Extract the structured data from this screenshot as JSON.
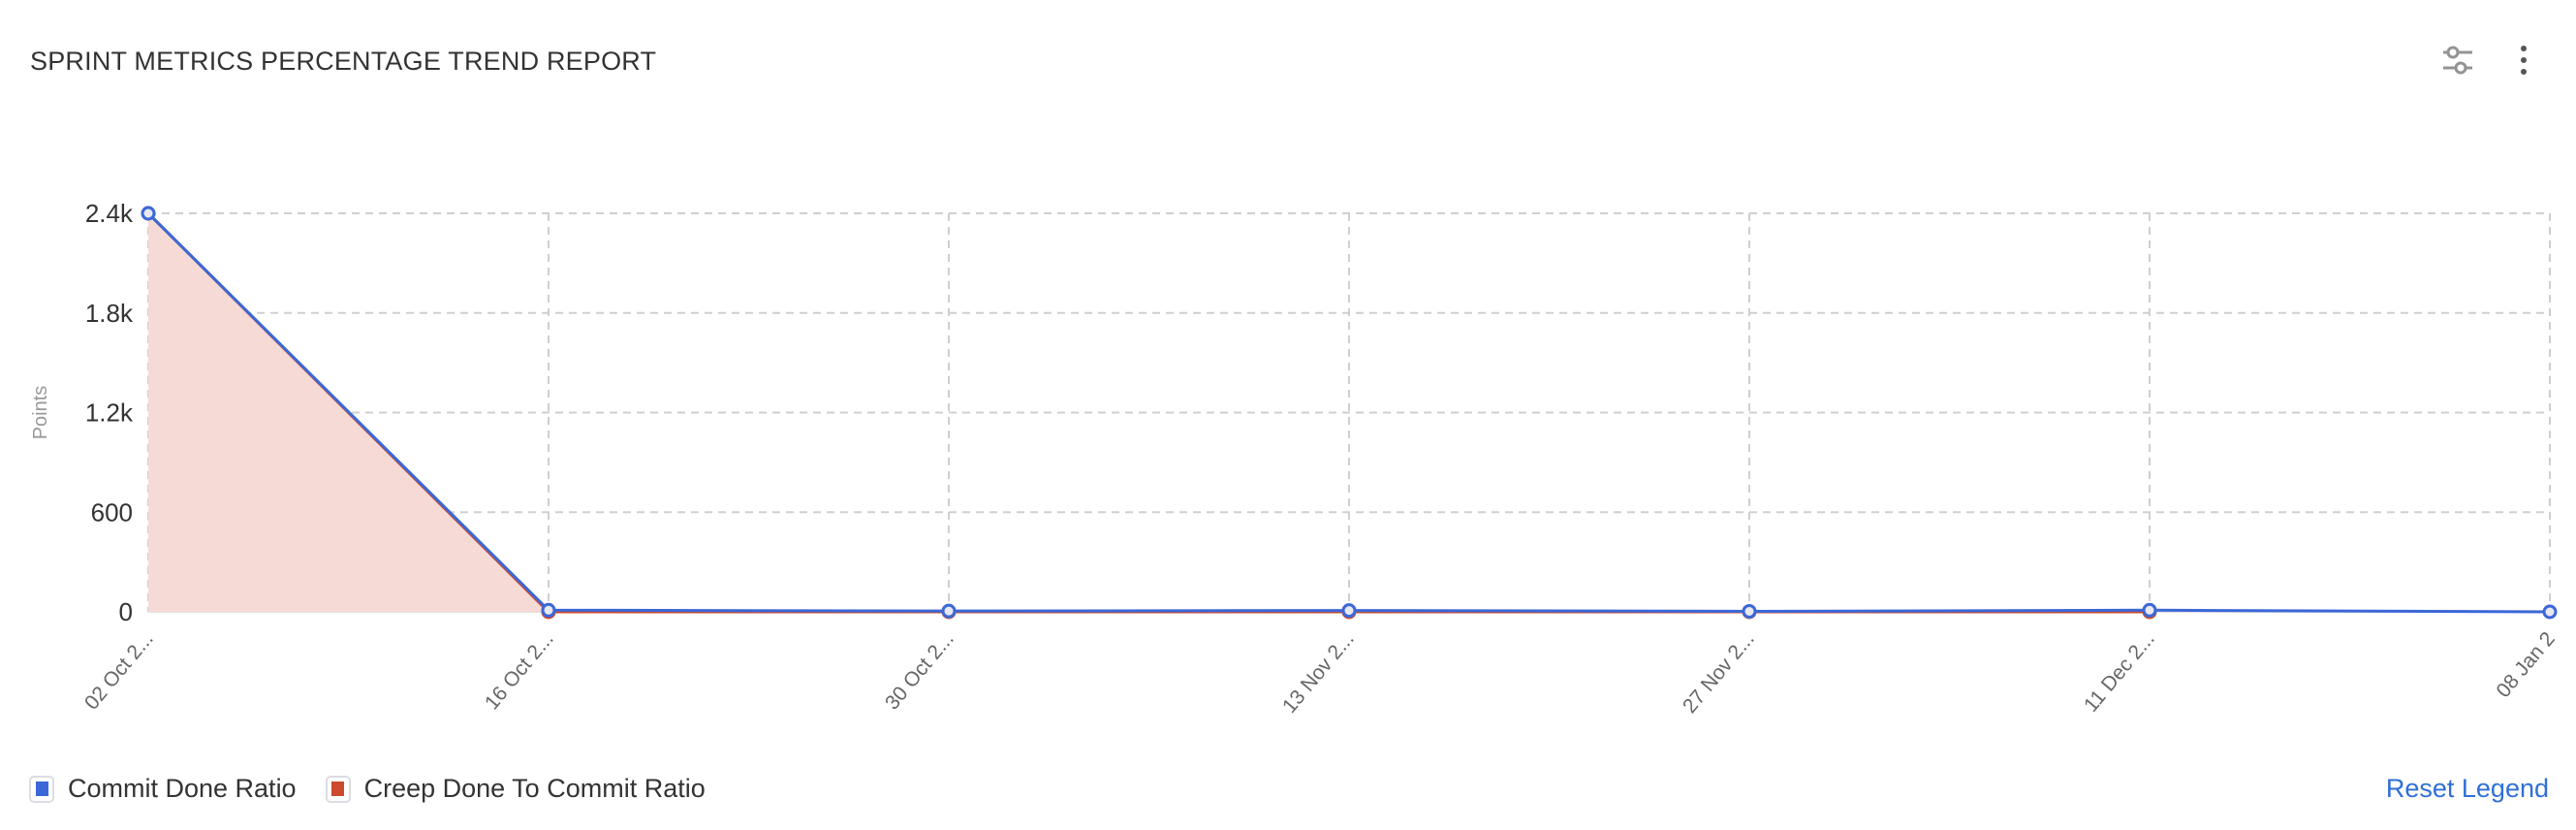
{
  "header": {
    "title": "SPRINT METRICS PERCENTAGE TREND REPORT",
    "filter_icon": "sliders-icon",
    "menu_icon": "more-vertical-icon"
  },
  "legend": {
    "items": [
      {
        "label": "Commit Done Ratio",
        "color": "#3b68d8"
      },
      {
        "label": "Creep Done To Commit Ratio",
        "color": "#cc4a2e"
      }
    ],
    "reset_label": "Reset Legend"
  },
  "chart_data": {
    "type": "line",
    "title": "",
    "xlabel": "",
    "ylabel": "Points",
    "categories": [
      "02 Oct 2...",
      "16 Oct 2...",
      "30 Oct 2...",
      "13 Nov 2...",
      "27 Nov 2...",
      "11 Dec 2...",
      "08 Jan 2"
    ],
    "yticks": [
      "0",
      "600",
      "1.2k",
      "1.8k",
      "2.4k"
    ],
    "ylim": [
      0,
      2400
    ],
    "grid": true,
    "series": [
      {
        "name": "Commit Done Ratio",
        "color": "#3b68d8",
        "values": [
          2400,
          10,
          5,
          8,
          3,
          10,
          0
        ]
      },
      {
        "name": "Creep Done To Commit Ratio",
        "color": "#cc4a2e",
        "fill": "#f5dad5",
        "values": [
          2400,
          0,
          0,
          0,
          0,
          0,
          null
        ]
      }
    ],
    "legend_position": "bottom-left"
  }
}
